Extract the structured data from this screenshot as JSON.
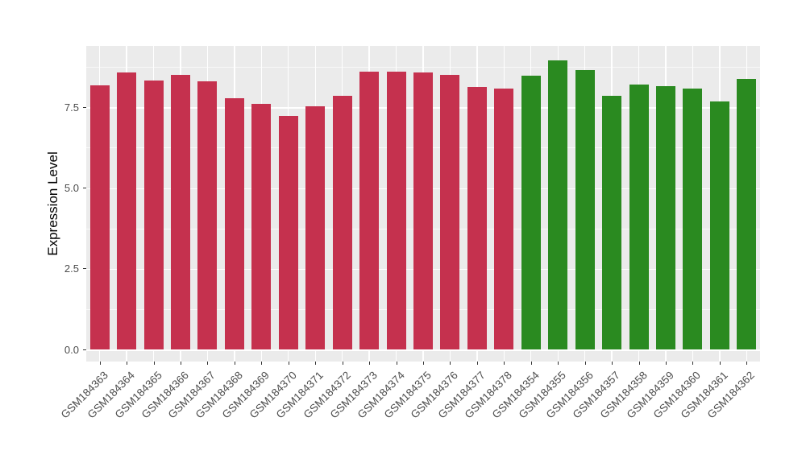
{
  "figure": {
    "background": "#ffffff"
  },
  "chart_data": {
    "type": "bar",
    "title": "",
    "xlabel": "",
    "ylabel": "Expression Level",
    "ylim": [
      -0.45,
      9.4
    ],
    "ytick_labels": [
      "0.0",
      "2.5",
      "5.0",
      "7.5"
    ],
    "ytick_values": [
      0,
      2.5,
      5,
      7.5
    ],
    "minor_gridlines": [
      1.25,
      3.75,
      6.25,
      8.75
    ],
    "grid": "on",
    "legend": "none",
    "panel_background": "#EBEBEB",
    "gridline_color": "#FFFFFF",
    "axis_text_color": "#4d4d4d",
    "axis_title_color": "#000000",
    "group_colors": [
      "#C5314E",
      "#2A8A20"
    ],
    "groups": [
      {
        "name": "red-group",
        "color": "#C5314E",
        "first": "GSM184363",
        "last": "GSM184378"
      },
      {
        "name": "green-group",
        "color": "#2A8A20",
        "first": "GSM184354",
        "last": "GSM184362"
      }
    ],
    "categories": [
      "GSM184363",
      "GSM184364",
      "GSM184365",
      "GSM184366",
      "GSM184367",
      "GSM184368",
      "GSM184369",
      "GSM184370",
      "GSM184371",
      "GSM184372",
      "GSM184373",
      "GSM184374",
      "GSM184375",
      "GSM184376",
      "GSM184377",
      "GSM184378",
      "GSM184354",
      "GSM184355",
      "GSM184356",
      "GSM184357",
      "GSM184358",
      "GSM184359",
      "GSM184360",
      "GSM184361",
      "GSM184362"
    ],
    "values": [
      8.18,
      8.58,
      8.33,
      8.5,
      8.31,
      7.79,
      7.6,
      7.22,
      7.54,
      7.85,
      8.6,
      8.6,
      8.58,
      8.5,
      8.12,
      8.08,
      8.48,
      8.95,
      8.65,
      7.85,
      8.2,
      8.15,
      8.08,
      7.68,
      8.37
    ],
    "bar_groups": [
      0,
      0,
      0,
      0,
      0,
      0,
      0,
      0,
      0,
      0,
      0,
      0,
      0,
      0,
      0,
      0,
      1,
      1,
      1,
      1,
      1,
      1,
      1,
      1,
      1
    ]
  }
}
